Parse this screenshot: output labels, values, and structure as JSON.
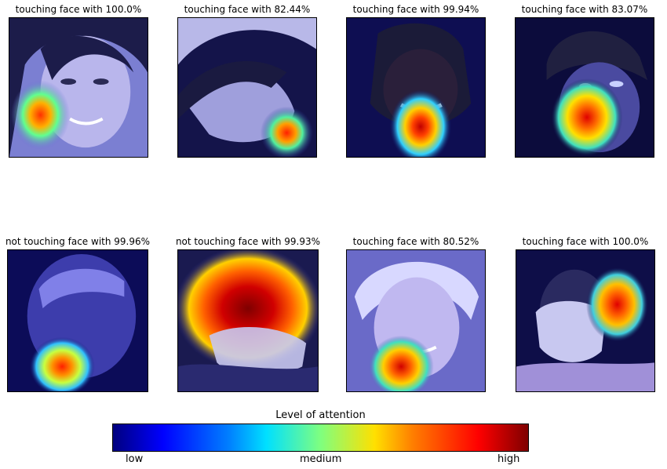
{
  "panels": [
    {
      "caption": "touching face with 100.0%"
    },
    {
      "caption": "touching face with 82.44%"
    },
    {
      "caption": "touching face with 99.94%"
    },
    {
      "caption": "touching face with 83.07%"
    },
    {
      "caption": "not touching face with 99.96%"
    },
    {
      "caption": "not touching face with 99.93%"
    },
    {
      "caption": "touching face with 80.52%"
    },
    {
      "caption": "touching face with 100.0%"
    }
  ],
  "colorbar": {
    "title": "Level of attention",
    "ticks": [
      "low",
      "medium",
      "high"
    ],
    "colormap": [
      "#00007f",
      "#0000ff",
      "#00e0ff",
      "#7fff7f",
      "#ffe000",
      "#ff8000",
      "#ff0000",
      "#7f0000"
    ]
  }
}
